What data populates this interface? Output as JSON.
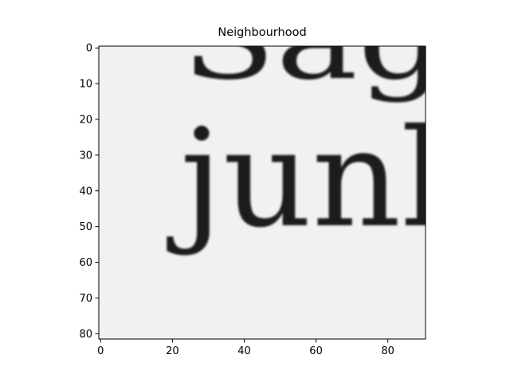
{
  "figure": {
    "title": "Neighbourhood",
    "image_subject": "grayscale scanned text crop"
  },
  "image": {
    "printed_text": [
      "Sag",
      "junk"
    ],
    "background": "#f1f1f1",
    "ink": "#1b1b1b"
  },
  "axes": {
    "x_ticks": [
      0,
      20,
      40,
      60,
      80
    ],
    "y_ticks": [
      0,
      10,
      20,
      30,
      40,
      50,
      60,
      70,
      80
    ],
    "x_range": [
      -0.5,
      90.5
    ],
    "y_range": [
      81.5,
      -0.5
    ],
    "y_inverted": true
  },
  "colors": {
    "axis": "#000000",
    "text": "#000000"
  }
}
